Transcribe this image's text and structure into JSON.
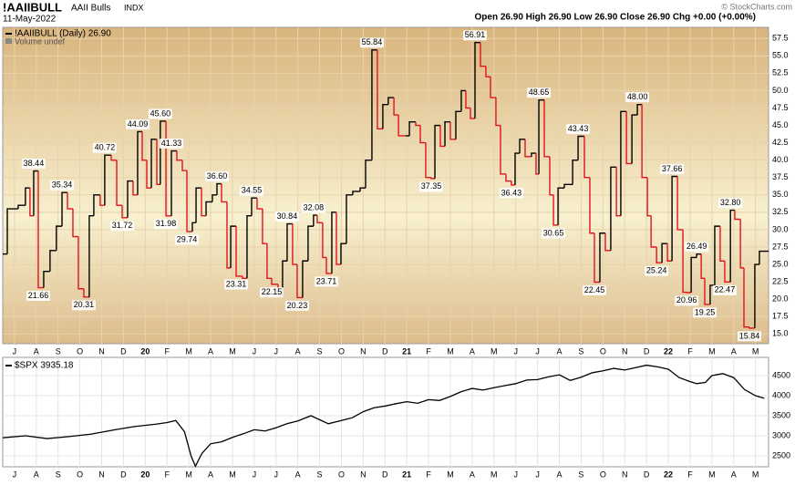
{
  "header": {
    "symbol": "!AAIIBULL",
    "name": "AAII Bulls",
    "exchange": "INDX",
    "date": "11-May-2022",
    "quote": "Open 26.90 High 26.90 Low 26.90 Close 26.90 Chg +0.00 (+0.00%)",
    "copyright": "© StockCharts.com"
  },
  "chart_data": [
    {
      "type": "step",
      "legend": "!AAIIBULL (Daily) 26.90",
      "volume_note": "Volume undef",
      "xlim": [
        -0.54,
        34.6
      ],
      "ylim": [
        13.6,
        59.1
      ],
      "grid": true,
      "up_color": "#000000",
      "down_color": "#e0141e",
      "xticks": [
        {
          "value": 0,
          "label": "J"
        },
        {
          "value": 1,
          "label": "A"
        },
        {
          "value": 2,
          "label": "S"
        },
        {
          "value": 3,
          "label": "O"
        },
        {
          "value": 4,
          "label": "N"
        },
        {
          "value": 5,
          "label": "D"
        },
        {
          "value": 6,
          "label": "20"
        },
        {
          "value": 7,
          "label": "F"
        },
        {
          "value": 8,
          "label": "M"
        },
        {
          "value": 9,
          "label": "A"
        },
        {
          "value": 10,
          "label": "M"
        },
        {
          "value": 11,
          "label": "J"
        },
        {
          "value": 12,
          "label": "J"
        },
        {
          "value": 13,
          "label": "A"
        },
        {
          "value": 14,
          "label": "S"
        },
        {
          "value": 15,
          "label": "O"
        },
        {
          "value": 16,
          "label": "N"
        },
        {
          "value": 17,
          "label": "D"
        },
        {
          "value": 18,
          "label": "21"
        },
        {
          "value": 19,
          "label": "F"
        },
        {
          "value": 20,
          "label": "M"
        },
        {
          "value": 21,
          "label": "A"
        },
        {
          "value": 22,
          "label": "M"
        },
        {
          "value": 23,
          "label": "J"
        },
        {
          "value": 24,
          "label": "J"
        },
        {
          "value": 25,
          "label": "A"
        },
        {
          "value": 26,
          "label": "S"
        },
        {
          "value": 27,
          "label": "O"
        },
        {
          "value": 28,
          "label": "N"
        },
        {
          "value": 29,
          "label": "D"
        },
        {
          "value": 30,
          "label": "22"
        },
        {
          "value": 31,
          "label": "F"
        },
        {
          "value": 32,
          "label": "M"
        },
        {
          "value": 33,
          "label": "A"
        },
        {
          "value": 34,
          "label": "M"
        }
      ],
      "yticks": [
        {
          "value": 15,
          "label": "15.0"
        },
        17.5,
        {
          "value": 20,
          "label": "20.0"
        },
        22.5,
        {
          "value": 25,
          "label": "25.0"
        },
        27.5,
        {
          "value": 30,
          "label": "30.0"
        },
        32.5,
        {
          "value": 35,
          "label": "35.0"
        },
        37.5,
        {
          "value": 40,
          "label": "40.0"
        },
        42.5,
        {
          "value": 45,
          "label": "45.0"
        },
        47.5,
        {
          "value": 50,
          "label": "50.0"
        },
        52.5,
        {
          "value": 55,
          "label": "55.0"
        },
        57.5
      ],
      "series": [
        {
          "name": "!AAIIBULL",
          "x": [
            -0.54,
            -0.33,
            0.17,
            0.5,
            0.71,
            0.88,
            1.09,
            1.34,
            1.63,
            1.92,
            2.18,
            2.43,
            2.68,
            2.93,
            3.18,
            3.43,
            3.64,
            3.93,
            4.14,
            4.44,
            4.69,
            4.94,
            5.19,
            5.44,
            5.65,
            5.86,
            6.07,
            6.28,
            6.53,
            6.69,
            6.95,
            7.2,
            7.45,
            7.7,
            7.91,
            8.16,
            8.33,
            8.58,
            8.79,
            9.08,
            9.29,
            9.5,
            9.75,
            9.92,
            10.17,
            10.46,
            10.67,
            10.88,
            11.13,
            11.38,
            11.59,
            11.8,
            12.09,
            12.3,
            12.51,
            12.76,
            12.97,
            13.22,
            13.47,
            13.72,
            13.89,
            14.14,
            14.31,
            14.56,
            14.77,
            14.98,
            15.23,
            15.52,
            15.86,
            16.11,
            16.4,
            16.65,
            16.9,
            17.15,
            17.41,
            17.62,
            17.95,
            18.12,
            18.41,
            18.62,
            18.87,
            19.12,
            19.29,
            19.54,
            19.75,
            20.0,
            20.25,
            20.5,
            20.71,
            20.92,
            21.13,
            21.38,
            21.63,
            21.84,
            22.09,
            22.3,
            22.55,
            22.8,
            22.97,
            23.18,
            23.43,
            23.72,
            23.93,
            24.06,
            24.31,
            24.56,
            24.73,
            24.94,
            25.23,
            25.48,
            25.61,
            25.86,
            26.15,
            26.4,
            26.61,
            26.86,
            27.11,
            27.36,
            27.62,
            27.82,
            28.08,
            28.33,
            28.58,
            28.79,
            29.04,
            29.21,
            29.46,
            29.71,
            29.96,
            30.17,
            30.42,
            30.67,
            30.84,
            31.05,
            31.3,
            31.51,
            31.67,
            31.92,
            32.13,
            32.38,
            32.59,
            32.85,
            33.05,
            33.31,
            33.47,
            33.72,
            33.97,
            34.18
          ],
          "values": [
            26.5,
            33.0,
            33.5,
            36.0,
            32.0,
            38.44,
            21.66,
            24.0,
            27.0,
            30.5,
            35.34,
            33.0,
            29.0,
            21.5,
            20.31,
            32.0,
            35.0,
            33.5,
            40.72,
            40.0,
            33.5,
            31.72,
            37.0,
            35.0,
            44.09,
            40.0,
            36.0,
            43.0,
            36.5,
            45.6,
            31.98,
            41.33,
            40.0,
            38.5,
            29.74,
            31.0,
            36.0,
            32.0,
            34.0,
            35.0,
            36.6,
            34.0,
            24.5,
            30.5,
            23.31,
            23.0,
            32.0,
            34.55,
            33.0,
            28.0,
            23.0,
            22.15,
            20.5,
            25.5,
            30.84,
            25.0,
            20.23,
            25.5,
            30.5,
            32.08,
            31.0,
            26.0,
            23.71,
            32.5,
            25.0,
            28.0,
            35.0,
            35.5,
            36.0,
            40.0,
            55.84,
            44.5,
            48.0,
            49.0,
            46.5,
            43.5,
            43.5,
            45.5,
            45.0,
            42.5,
            37.5,
            37.35,
            45.0,
            42.0,
            45.5,
            43.0,
            47.0,
            50.0,
            47.5,
            46.0,
            56.91,
            53.5,
            52.0,
            49.0,
            45.0,
            38.0,
            37.0,
            36.43,
            41.0,
            43.0,
            40.5,
            41.0,
            38.0,
            48.65,
            40.5,
            35.0,
            30.65,
            36.0,
            36.5,
            36.5,
            40.0,
            43.43,
            37.5,
            29.5,
            22.45,
            29.5,
            27.0,
            39.0,
            32.0,
            47.0,
            39.5,
            46.5,
            48.0,
            37.5,
            32.0,
            27.5,
            25.24,
            28.0,
            25.5,
            37.66,
            30.0,
            21.0,
            20.96,
            26.0,
            26.49,
            23.0,
            19.25,
            22.0,
            30.5,
            25.5,
            22.47,
            32.8,
            31.5,
            24.5,
            16.0,
            15.84,
            25.0,
            26.9
          ],
          "value_labels": [
            null,
            null,
            null,
            null,
            null,
            "38.44",
            "21.66",
            null,
            null,
            null,
            "35.34",
            null,
            null,
            null,
            "20.31",
            null,
            null,
            null,
            "40.72",
            null,
            null,
            "31.72",
            null,
            null,
            "44.09",
            null,
            null,
            null,
            null,
            "45.60",
            "31.98",
            "41.33",
            null,
            null,
            "29.74",
            null,
            null,
            null,
            null,
            null,
            "36.60",
            null,
            null,
            null,
            "23.31",
            null,
            null,
            "34.55",
            null,
            null,
            null,
            "22.15",
            null,
            null,
            "30.84",
            null,
            "20.23",
            null,
            null,
            "32.08",
            null,
            null,
            "23.71",
            null,
            null,
            null,
            null,
            null,
            null,
            null,
            "55.84",
            null,
            null,
            null,
            null,
            null,
            null,
            null,
            null,
            null,
            null,
            "37.35",
            null,
            null,
            null,
            null,
            null,
            null,
            null,
            null,
            "56.91",
            null,
            null,
            null,
            null,
            null,
            null,
            "36.43",
            null,
            null,
            null,
            null,
            null,
            "48.65",
            null,
            null,
            "30.65",
            null,
            null,
            null,
            null,
            "43.43",
            null,
            null,
            "22.45",
            null,
            null,
            null,
            null,
            null,
            null,
            null,
            "48.00",
            null,
            null,
            null,
            "25.24",
            null,
            null,
            "37.66",
            null,
            null,
            "20.96",
            null,
            "26.49",
            null,
            "19.25",
            null,
            null,
            null,
            "22.47",
            "32.80",
            null,
            null,
            null,
            "15.84",
            null,
            null
          ]
        }
      ]
    },
    {
      "type": "line",
      "legend": "$SPX 3935.18",
      "color": "#000000",
      "xlim": [
        -0.54,
        34.6
      ],
      "ylim": [
        2227,
        4955
      ],
      "grid": true,
      "yticks": [
        2500,
        3000,
        3500,
        4000,
        4500
      ],
      "series": [
        {
          "name": "$SPX",
          "x": [
            -0.54,
            0.5,
            1.5,
            2.5,
            3.5,
            4.5,
            5.5,
            6.5,
            7.0,
            7.4,
            7.8,
            8.1,
            8.3,
            8.6,
            9.0,
            9.5,
            10.0,
            10.5,
            11.0,
            11.5,
            12.0,
            12.5,
            13.0,
            13.6,
            14.0,
            14.4,
            15.0,
            15.5,
            16.0,
            16.5,
            17.0,
            17.5,
            18.0,
            18.5,
            19.0,
            19.5,
            20.0,
            20.5,
            21.0,
            21.5,
            22.0,
            22.5,
            23.0,
            23.5,
            24.0,
            24.5,
            25.0,
            25.5,
            26.0,
            26.5,
            27.0,
            27.5,
            28.0,
            28.5,
            29.0,
            29.5,
            30.0,
            30.5,
            31.0,
            31.3,
            31.7,
            32.0,
            32.5,
            33.0,
            33.5,
            34.0,
            34.4
          ],
          "values": [
            2950,
            3000,
            2930,
            2980,
            3040,
            3140,
            3230,
            3290,
            3330,
            3380,
            3100,
            2500,
            2240,
            2560,
            2800,
            2850,
            2960,
            3050,
            3150,
            3120,
            3200,
            3300,
            3370,
            3500,
            3400,
            3300,
            3380,
            3450,
            3600,
            3700,
            3740,
            3800,
            3850,
            3810,
            3900,
            3880,
            3980,
            4100,
            4180,
            4140,
            4200,
            4250,
            4300,
            4390,
            4400,
            4470,
            4520,
            4380,
            4460,
            4570,
            4620,
            4680,
            4640,
            4700,
            4760,
            4720,
            4660,
            4450,
            4350,
            4300,
            4330,
            4500,
            4550,
            4450,
            4150,
            4000,
            3935
          ]
        }
      ]
    }
  ]
}
